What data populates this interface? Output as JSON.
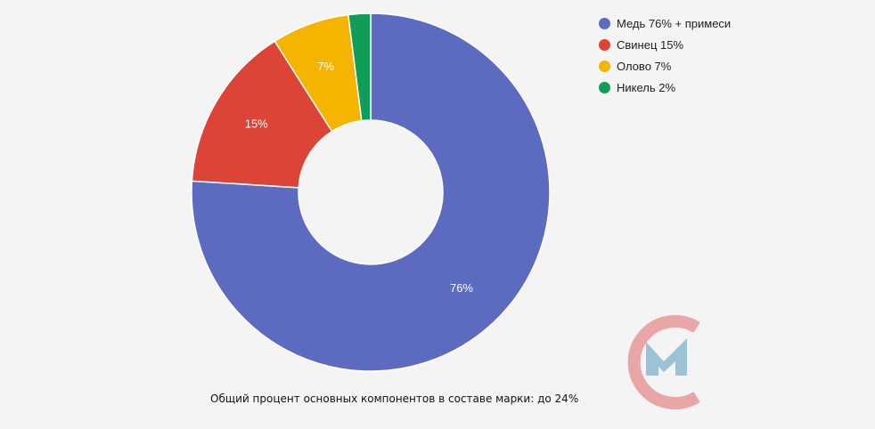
{
  "chart_data": {
    "type": "pie",
    "donut": true,
    "start_angle_deg": 0,
    "direction": "clockwise",
    "legend_position": "top-right",
    "title": "",
    "categories": [
      "Медь 76% + примеси",
      "Свинец 15%",
      "Олово 7%",
      "Никель 2%"
    ],
    "values": [
      76,
      15,
      7,
      2
    ],
    "slice_labels": [
      "76%",
      "15%",
      "7%",
      ""
    ],
    "colors": [
      "#5c6bc0",
      "#db4437",
      "#f4b400",
      "#0f9d58"
    ],
    "caption": "Общий процент основных компонентов в составе марки: до 24%"
  },
  "logo": {
    "name": "cm-logo",
    "ring_color": "#e8a6a6",
    "mark_color": "#9cc3d5"
  }
}
